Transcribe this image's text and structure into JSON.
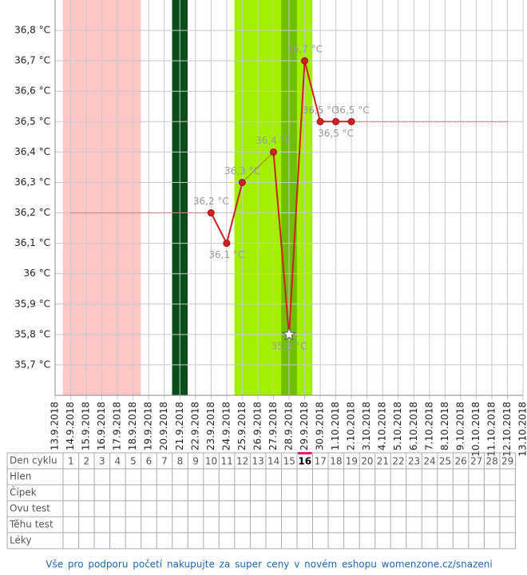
{
  "chart_data": {
    "type": "line",
    "categories": [
      "13.9.2018",
      "14.9.2018",
      "15.9.2018",
      "16.9.2018",
      "17.9.2018",
      "18.9.2018",
      "19.9.2018",
      "20.9.2018",
      "21.9.2018",
      "22.9.2018",
      "23.9.2018",
      "24.9.2018",
      "25.9.2018",
      "26.9.2018",
      "27.9.2018",
      "28.9.2018",
      "29.9.2018",
      "30.9.2018",
      "1.10.2018",
      "2.10.2018",
      "3.10.2018",
      "4.10.2018",
      "5.10.2018",
      "6.10.2018",
      "7.10.2018",
      "8.10.2018",
      "9.10.2018",
      "10.10.2018",
      "11.10.2018",
      "12.10.2018",
      "13.10.2018"
    ],
    "series": [
      {
        "color": "#cc2222",
        "values": [
          null,
          null,
          null,
          null,
          null,
          null,
          null,
          null,
          null,
          null,
          36.2,
          36.1,
          36.3,
          null,
          36.4,
          35.8,
          36.7,
          36.5,
          36.5,
          36.5,
          null,
          null,
          null,
          null,
          null,
          null,
          null,
          null,
          null,
          null,
          null
        ],
        "value_labels": [
          null,
          null,
          null,
          null,
          null,
          null,
          null,
          null,
          null,
          null,
          "36,2 °C",
          "36,1 °C",
          "36,3 °C",
          null,
          "36,4 °C",
          "35,8 °C",
          "36,7 °C",
          "36,5 °C",
          "36,5 °C",
          "36,5 °C",
          null,
          null,
          null,
          null,
          null,
          null,
          null,
          null,
          null,
          null,
          null
        ]
      }
    ],
    "ovulation": "28.9.2018",
    "reference_lines": [
      {
        "value": 36.2,
        "from": "14.9.2018",
        "to": "23.9.2018",
        "color": "#cc4444"
      },
      {
        "value": 36.5,
        "from": "2.10.2018",
        "to": "12.10.2018",
        "color": "#cc4444"
      }
    ],
    "bands": [
      {
        "from": "14.9.2018",
        "to": "18.9.2018",
        "color": "#ffc6c6"
      },
      {
        "from": "21.9.2018",
        "to": "21.9.2018",
        "color": "#0b4d1a"
      },
      {
        "from": "25.9.2018",
        "to": "29.9.2018",
        "color": "#a2f000"
      },
      {
        "from": "28.9.2018",
        "to": "28.9.2018",
        "color": "#6fbf00"
      }
    ],
    "ylim": [
      35.6,
      36.9
    ],
    "yticks": [
      {
        "value": 35.7,
        "label": "35,7 °C"
      },
      {
        "value": 35.8,
        "label": "35,8 °C"
      },
      {
        "value": 35.9,
        "label": "35,9 °C"
      },
      {
        "value": 36.0,
        "label": "36 °C"
      },
      {
        "value": 36.1,
        "label": "36,1 °C"
      },
      {
        "value": 36.2,
        "label": "36,2 °C"
      },
      {
        "value": 36.3,
        "label": "36,3 °C"
      },
      {
        "value": 36.4,
        "label": "36,4 °C"
      },
      {
        "value": 36.5,
        "label": "36,5 °C"
      },
      {
        "value": 36.6,
        "label": "36,6 °C"
      },
      {
        "value": 36.7,
        "label": "36,7 °C"
      },
      {
        "value": 36.8,
        "label": "36,8 °C"
      }
    ],
    "grid": true
  },
  "table": {
    "row_labels": [
      "Den cyklu",
      "Hlen",
      "Čípek",
      "Ovu test",
      "Těhu test",
      "Léky"
    ],
    "cycle_days": [
      1,
      2,
      3,
      4,
      5,
      6,
      7,
      8,
      9,
      10,
      11,
      12,
      13,
      14,
      15,
      16,
      17,
      18,
      19,
      20,
      21,
      22,
      23,
      24,
      25,
      26,
      27,
      28,
      29
    ],
    "today": 16
  },
  "footer": "Vše pro podporu početí nakupujte za super ceny v novém eshopu womenzone.cz/snazeni"
}
